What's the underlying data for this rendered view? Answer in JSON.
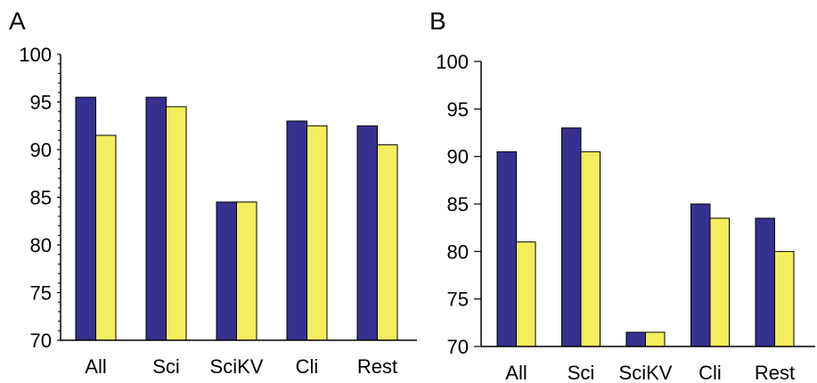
{
  "chart_data": [
    {
      "panel": "A",
      "type": "bar",
      "categories": [
        "All",
        "Sci",
        "SciKV",
        "Cli",
        "Rest"
      ],
      "series": [
        {
          "values": [
            95.5,
            95.5,
            84.5,
            93.0,
            92.5
          ]
        },
        {
          "values": [
            91.5,
            94.5,
            84.5,
            92.5,
            90.5
          ]
        }
      ],
      "ylim": [
        70,
        100
      ],
      "yticks": [
        70,
        75,
        80,
        85,
        90,
        95,
        100
      ],
      "minor_ticks": true,
      "grid": false,
      "colors": [
        "#36318f",
        "#f2ee5d"
      ]
    },
    {
      "panel": "B",
      "type": "bar",
      "categories": [
        "All",
        "Sci",
        "SciKV",
        "Cli",
        "Rest"
      ],
      "series": [
        {
          "values": [
            90.5,
            93.0,
            71.5,
            85.0,
            83.5
          ]
        },
        {
          "values": [
            81.0,
            90.5,
            71.5,
            83.5,
            80.0
          ]
        }
      ],
      "ylim": [
        70,
        100
      ],
      "yticks": [
        70,
        75,
        80,
        85,
        90,
        95,
        100
      ],
      "minor_ticks": false,
      "grid": false,
      "colors": [
        "#36318f",
        "#f2ee5d"
      ]
    }
  ]
}
